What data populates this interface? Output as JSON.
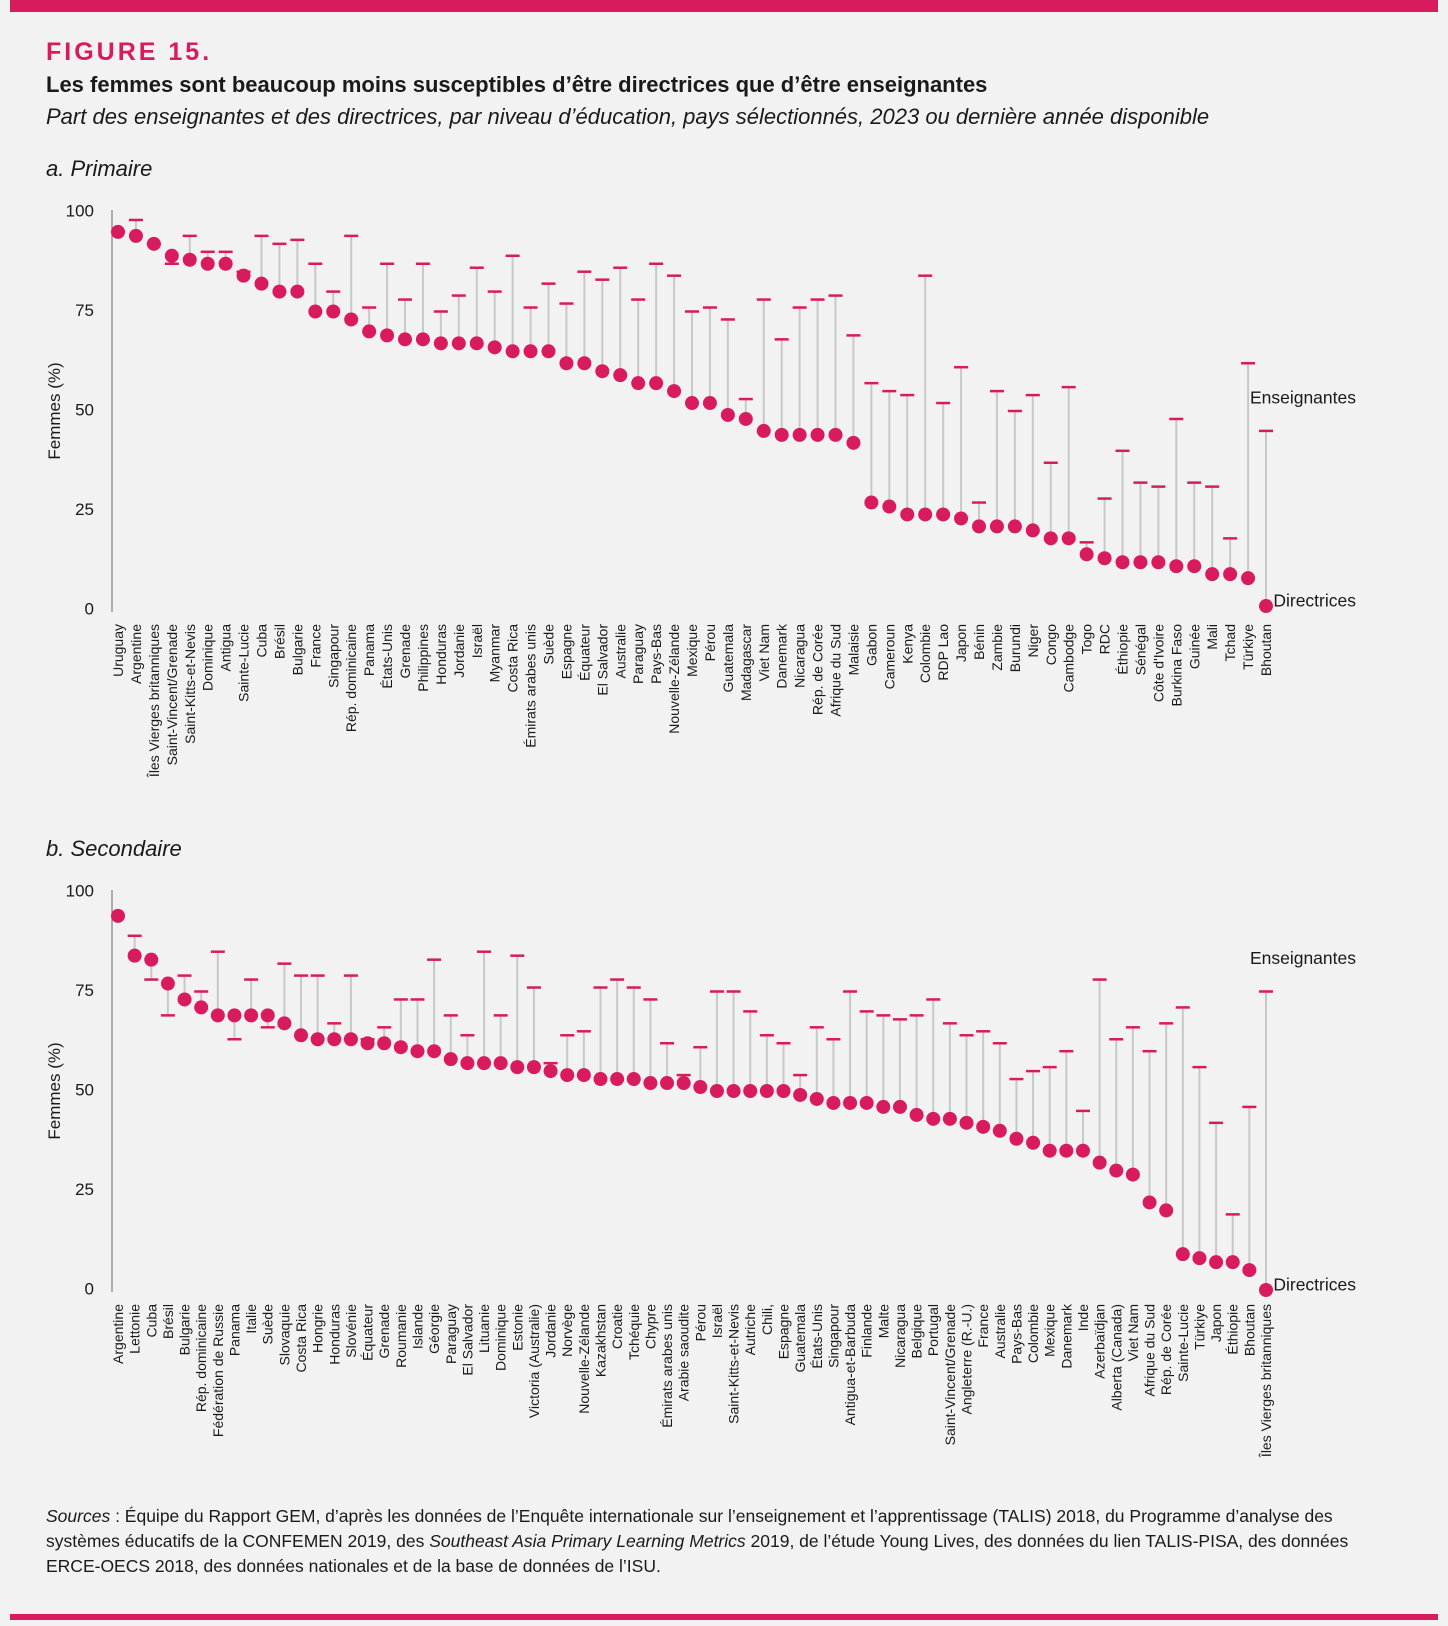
{
  "figure_label": "FIGURE 15.",
  "title": "Les femmes sont beaucoup moins susceptibles d’être directrices que d’être enseignantes",
  "subtitle": "Part des enseignantes et des directrices, par niveau d’éducation, pays sélectionnés, 2023 ou dernière année disponible",
  "sources": {
    "label": "Sources",
    "text": " : Équipe du Rapport GEM, d’après les données de l’Enquête internationale sur l’enseignement et l’apprentissage (TALIS) 2018, du Programme d’analyse des systèmes éducatifs de la CONFEMEN 2019, des ",
    "italic": "Southeast Asia Primary Learning Metrics",
    "text2": " 2019, de l’étude Young Lives, des données du lien TALIS-PISA, des données ERCE-OECS 2018, des données nationales et de la base de données de l’ISU."
  },
  "colors": {
    "accent": "#d81b5e",
    "connector": "#c8c8c8",
    "axis": "#666666"
  },
  "chart_data": [
    {
      "type": "dot-range",
      "title": "a. Primaire",
      "ylabel": "Femmes (%)",
      "ylim": [
        0,
        100
      ],
      "yticks": [
        0,
        25,
        50,
        75,
        100
      ],
      "legend": {
        "teachers": "Enseignantes",
        "directors": "Directrices"
      },
      "categories": [
        "Uruguay",
        "Argentine",
        "Îles Vierges britanniques",
        "Saint-Vincent/Grenade",
        "Saint-Kitts-et-Nevis",
        "Dominique",
        "Antigua",
        "Sainte-Lucie",
        "Cuba",
        "Brésil",
        "Bulgarie",
        "France",
        "Singapour",
        "Rép. dominicaine",
        "Panama",
        "États-Unis",
        "Grenade",
        "Philippines",
        "Honduras",
        "Jordanie",
        "Israël",
        "Myanmar",
        "Costa Rica",
        "Émirats arabes unis",
        "Suède",
        "Espagne",
        "Équateur",
        "El Salvador",
        "Australie",
        "Paraguay",
        "Pays-Bas",
        "Nouvelle-Zélande",
        "Mexique",
        "Pérou",
        "Guatemala",
        "Madagascar",
        "Viet Nam",
        "Danemark",
        "Nicaragua",
        "Rép. de Corée",
        "Afrique du Sud",
        "Malaisie",
        "Gabon",
        "Cameroun",
        "Kenya",
        "Colombie",
        "RDP Lao",
        "Japon",
        "Bénin",
        "Zambie",
        "Burundi",
        "Niger",
        "Congo",
        "Cambodge",
        "Togo",
        "RDC",
        "Éthiopie",
        "Sénégal",
        "Côte d'Ivoire",
        "Burkina Faso",
        "Guinée",
        "Mali",
        "Tchad",
        "Türkiye",
        "Bhoutan"
      ],
      "series": [
        {
          "name": "Enseignantes",
          "values": [
            95,
            98,
            92,
            87,
            94,
            90,
            90,
            85,
            94,
            92,
            93,
            87,
            80,
            94,
            76,
            87,
            78,
            87,
            75,
            79,
            86,
            80,
            89,
            76,
            82,
            77,
            85,
            83,
            86,
            78,
            87,
            84,
            75,
            76,
            73,
            53,
            78,
            68,
            76,
            78,
            79,
            69,
            57,
            55,
            54,
            84,
            52,
            61,
            27,
            55,
            50,
            54,
            37,
            56,
            17,
            28,
            40,
            32,
            31,
            48,
            32,
            31,
            18,
            62,
            45
          ]
        },
        {
          "name": "Directrices",
          "values": [
            95,
            94,
            92,
            89,
            88,
            87,
            87,
            84,
            82,
            80,
            80,
            75,
            75,
            73,
            70,
            69,
            68,
            68,
            67,
            67,
            67,
            66,
            65,
            65,
            65,
            62,
            62,
            60,
            59,
            57,
            57,
            55,
            52,
            52,
            49,
            48,
            45,
            44,
            44,
            44,
            44,
            42,
            27,
            26,
            24,
            24,
            24,
            23,
            21,
            21,
            21,
            20,
            18,
            18,
            14,
            13,
            12,
            12,
            12,
            11,
            11,
            9,
            9,
            8,
            1
          ]
        }
      ]
    },
    {
      "type": "dot-range",
      "title": "b. Secondaire",
      "ylabel": "Femmes (%)",
      "ylim": [
        0,
        100
      ],
      "yticks": [
        0,
        25,
        50,
        75,
        100
      ],
      "legend": {
        "teachers": "Enseignantes",
        "directors": "Directrices"
      },
      "categories": [
        "Argentine",
        "Lettonie",
        "Cuba",
        "Brésil",
        "Bulgarie",
        "Rép. dominicaine",
        "Fédération de Russie",
        "Panama",
        "Italie",
        "Suède",
        "Slovaquie",
        "Costa Rica",
        "Hongrie",
        "Honduras",
        "Slovénie",
        "Équateur",
        "Grenade",
        "Roumanie",
        "Islande",
        "Géorgie",
        "Paraguay",
        "El Salvador",
        "Lituanie",
        "Dominique",
        "Estonie",
        "Victoria (Australie)",
        "Jordanie",
        "Norvège",
        "Nouvelle-Zélande",
        "Kazakhstan",
        "Croatie",
        "Tchéquie",
        "Chypre",
        "Émirats arabes unis",
        "Arabie saoudite",
        "Pérou",
        "Israël",
        "Saint-Kitts-et-Nevis",
        "Autriche",
        "Chili,",
        "Espagne",
        "Guatemala",
        "États-Unis",
        "Singapour",
        "Antigua-et-Barbuda",
        "Finlande",
        "Malte",
        "Nicaragua",
        "Belgique",
        "Portugal",
        "Saint-Vincent/Grenade",
        "Angleterre (R.-U.)",
        "France",
        "Australie",
        "Pays-Bas",
        "Colombie",
        "Mexique",
        "Danemark",
        "Inde",
        "Azerbaïdjan",
        "Alberta (Canada)",
        "Viet Nam",
        "Afrique du Sud",
        "Rép. de Corée",
        "Sainte-Lucie",
        "Türkiye",
        "Japon",
        "Éthiopie",
        "Bhoutan",
        "Îles Vierges britanniques"
      ],
      "series": [
        {
          "name": "Enseignantes",
          "values": [
            94,
            89,
            78,
            69,
            79,
            75,
            85,
            63,
            78,
            66,
            82,
            79,
            79,
            67,
            79,
            63,
            66,
            73,
            73,
            83,
            69,
            64,
            85,
            69,
            84,
            76,
            57,
            64,
            65,
            76,
            78,
            76,
            73,
            62,
            54,
            61,
            75,
            75,
            70,
            64,
            62,
            54,
            66,
            63,
            75,
            70,
            69,
            68,
            69,
            73,
            67,
            64,
            65,
            62,
            53,
            55,
            56,
            60,
            45,
            78,
            63,
            66,
            60,
            67,
            71,
            56,
            42,
            19,
            46,
            75
          ]
        },
        {
          "name": "Directrices",
          "values": [
            94,
            84,
            83,
            77,
            73,
            71,
            69,
            69,
            69,
            69,
            67,
            64,
            63,
            63,
            63,
            62,
            62,
            61,
            60,
            60,
            58,
            57,
            57,
            57,
            56,
            56,
            55,
            54,
            54,
            53,
            53,
            53,
            52,
            52,
            52,
            51,
            50,
            50,
            50,
            50,
            50,
            49,
            48,
            47,
            47,
            47,
            46,
            46,
            44,
            43,
            43,
            42,
            41,
            40,
            38,
            37,
            35,
            35,
            35,
            32,
            30,
            29,
            22,
            20,
            9,
            8,
            7,
            7,
            5,
            0
          ]
        }
      ]
    }
  ]
}
